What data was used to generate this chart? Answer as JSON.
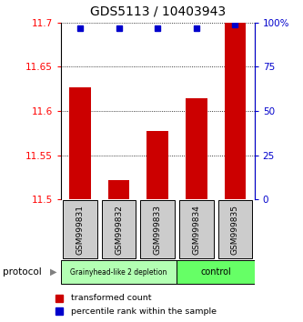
{
  "title": "GDS5113 / 10403943",
  "samples": [
    "GSM999831",
    "GSM999832",
    "GSM999833",
    "GSM999834",
    "GSM999835"
  ],
  "red_values": [
    11.627,
    11.522,
    11.578,
    11.615,
    11.7
  ],
  "blue_values": [
    97,
    97,
    97,
    97,
    99
  ],
  "ylim_left": [
    11.5,
    11.7
  ],
  "ylim_right": [
    0,
    100
  ],
  "left_ticks": [
    11.5,
    11.55,
    11.6,
    11.65,
    11.7
  ],
  "right_ticks": [
    0,
    25,
    50,
    75,
    100
  ],
  "right_tick_labels": [
    "0",
    "25",
    "50",
    "75",
    "100%"
  ],
  "bar_color": "#cc0000",
  "dot_color": "#0000cc",
  "background_color": "#ffffff",
  "sample_box_color": "#cccccc",
  "group1_color": "#b3ffb3",
  "group2_color": "#66ff66",
  "group1_label": "Grainyhead-like 2 depletion",
  "group2_label": "control",
  "group1_count": 3,
  "group2_count": 2
}
